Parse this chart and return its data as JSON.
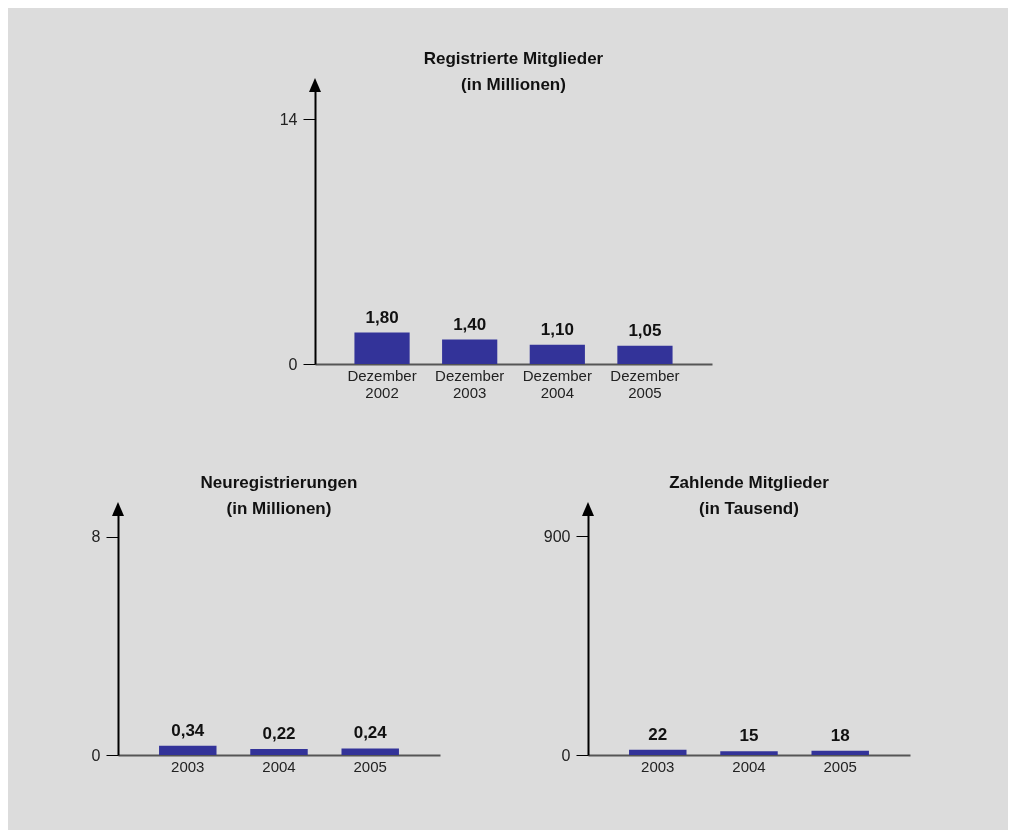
{
  "chart_data": [
    {
      "type": "bar",
      "title": "Registrierte Mitglieder\n(in Millionen)",
      "categories": [
        "Dezember\n2002",
        "Dezember\n2003",
        "Dezember\n2004",
        "Dezember\n2005"
      ],
      "values": [
        1.8,
        1.4,
        1.1,
        1.05
      ],
      "value_labels": [
        "1,80",
        "1,40",
        "1,10",
        "1,05"
      ],
      "color": "#333399",
      "ylim": [
        0,
        15.8
      ],
      "yticks": [
        0,
        14
      ]
    },
    {
      "type": "bar",
      "title": "Neuregistrierungen\n(in Millionen)",
      "categories": [
        "2003",
        "2004",
        "2005"
      ],
      "values": [
        0.34,
        0.22,
        0.24
      ],
      "value_labels": [
        "0,34",
        "0,22",
        "0,24"
      ],
      "color": "#333399",
      "ylim": [
        0,
        8.9
      ],
      "yticks": [
        0,
        8
      ]
    },
    {
      "type": "bar",
      "title": "Zahlende Mitglieder\n(in Tausend)",
      "categories": [
        "2003",
        "2004",
        "2005"
      ],
      "values": [
        22,
        15,
        18
      ],
      "value_labels": [
        "22",
        "15",
        "18"
      ],
      "color": "#333399",
      "ylim": [
        0,
        1000
      ],
      "yticks": [
        0,
        900
      ]
    }
  ]
}
